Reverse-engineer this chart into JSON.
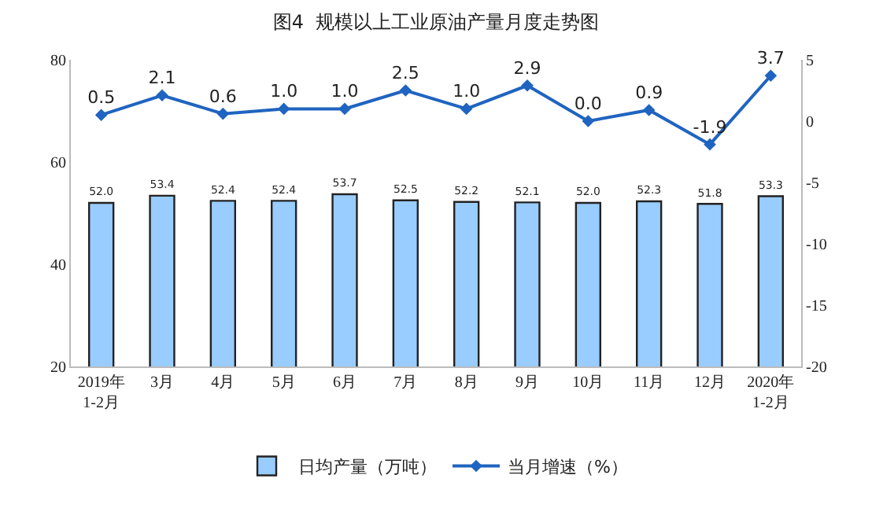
{
  "chart_data": {
    "type": "bar",
    "title": "图4  规模以上工业原油产量月度走势图",
    "categories": [
      "2019年\n1-2月",
      "3月",
      "4月",
      "5月",
      "6月",
      "7月",
      "8月",
      "9月",
      "10月",
      "11月",
      "12月",
      "2020年\n1-2月"
    ],
    "series": [
      {
        "name": "日均产量（万吨）",
        "color": "#99ccff",
        "values": [
          52.0,
          53.4,
          52.4,
          52.4,
          53.7,
          52.5,
          52.2,
          52.1,
          52.0,
          52.3,
          51.8,
          53.3
        ],
        "value_labels": [
          "52.0",
          "53.4",
          "52.4",
          "52.4",
          "53.7",
          "52.5",
          "52.2",
          "52.1",
          "52.0",
          "52.3",
          "51.8",
          "53.3"
        ]
      },
      {
        "name": "当月增速（%）",
        "type": "line",
        "axis": "y2",
        "color": "#1f64c0",
        "marker": "diamond",
        "values": [
          0.5,
          2.1,
          0.6,
          1.0,
          1.0,
          2.5,
          1.0,
          2.9,
          0.0,
          0.9,
          -1.9,
          3.7
        ],
        "value_labels": [
          "0.5",
          "2.1",
          "0.6",
          "1.0",
          "1.0",
          "2.5",
          "1.0",
          "2.9",
          "0.0",
          "0.9",
          "-1.9",
          "3.7"
        ]
      }
    ],
    "ylim": [
      20,
      80
    ],
    "yticks": [
      20,
      40,
      60,
      80
    ],
    "y2lim": [
      -20,
      5
    ],
    "y2ticks": [
      -20,
      -15,
      -10,
      -5,
      0,
      5
    ],
    "legend": "bottom"
  }
}
